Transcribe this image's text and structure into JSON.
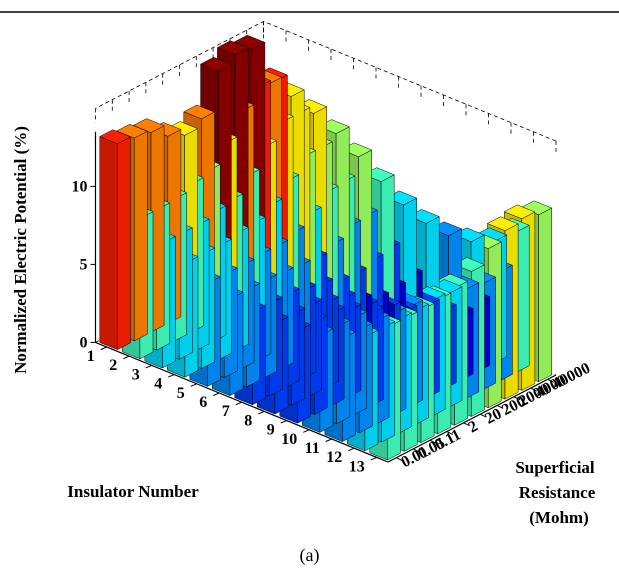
{
  "caption": "(a)",
  "chart_data": {
    "type": "bar3d",
    "title": "",
    "zlabel": "Normalized Electric Potential (%)",
    "xlabel": "Insulator Number",
    "ylabel_lines": [
      "Superficial",
      "Resistance",
      "(Mohm)"
    ],
    "zticks": [
      0,
      5,
      10
    ],
    "zlim": [
      0,
      15
    ],
    "insulators": [
      "1",
      "2",
      "3",
      "4",
      "5",
      "6",
      "7",
      "8",
      "9",
      "10",
      "11",
      "12",
      "13"
    ],
    "resistances": [
      "0.01",
      "0.05",
      "0.1",
      "1",
      "2",
      "20",
      "200",
      "2000",
      "4000",
      "40000"
    ],
    "colors": [
      "#00008f",
      "#0000df",
      "#0040ff",
      "#0090ff",
      "#00e0ff",
      "#40ffbf",
      "#9fff60",
      "#ffef00",
      "#ff8000",
      "#ff2000",
      "#8f0000"
    ],
    "series": [
      {
        "resistance": "0.01",
        "values": [
          13.2,
          9.0,
          8.0,
          7.3,
          6.6,
          6.2,
          5.9,
          5.8,
          5.9,
          6.2,
          6.6,
          7.3,
          8.5
        ]
      },
      {
        "resistance": "0.05",
        "values": [
          13.0,
          9.0,
          8.0,
          7.3,
          6.6,
          6.2,
          5.9,
          5.8,
          5.9,
          6.2,
          6.6,
          7.3,
          8.5
        ]
      },
      {
        "resistance": "0.1",
        "values": [
          12.8,
          9.1,
          8.0,
          7.3,
          6.6,
          6.2,
          5.9,
          5.8,
          5.9,
          6.2,
          6.6,
          7.3,
          8.5
        ]
      },
      {
        "resistance": "1",
        "values": [
          12.0,
          9.5,
          8.3,
          7.5,
          6.7,
          6.1,
          5.6,
          5.4,
          5.5,
          5.9,
          6.5,
          7.3,
          8.6
        ]
      },
      {
        "resistance": "2",
        "values": [
          11.5,
          9.8,
          8.5,
          7.6,
          6.7,
          6.0,
          5.4,
          5.1,
          5.2,
          5.7,
          6.4,
          7.4,
          8.8
        ]
      },
      {
        "resistance": "20",
        "values": [
          12.0,
          11.0,
          9.5,
          8.2,
          7.0,
          5.9,
          5.0,
          4.4,
          4.4,
          4.9,
          5.9,
          7.3,
          9.3
        ]
      },
      {
        "resistance": "200",
        "values": [
          14.5,
          12.5,
          10.8,
          9.2,
          7.7,
          6.3,
          5.0,
          4.0,
          3.6,
          3.9,
          5.0,
          7.0,
          10.2
        ]
      },
      {
        "resistance": "2000",
        "values": [
          15.0,
          13.5,
          11.8,
          10.2,
          8.5,
          6.9,
          5.3,
          4.1,
          3.4,
          3.3,
          4.2,
          6.8,
          10.8
        ]
      },
      {
        "resistance": "4000",
        "values": [
          14.8,
          13.3,
          11.8,
          10.2,
          8.6,
          7.0,
          5.5,
          4.3,
          3.6,
          3.5,
          4.4,
          7.0,
          11.0
        ]
      },
      {
        "resistance": "40000",
        "values": [
          12.0,
          11.8,
          11.3,
          10.6,
          9.7,
          8.7,
          7.8,
          7.2,
          7.0,
          7.2,
          7.8,
          9.0,
          10.7
        ]
      }
    ]
  }
}
